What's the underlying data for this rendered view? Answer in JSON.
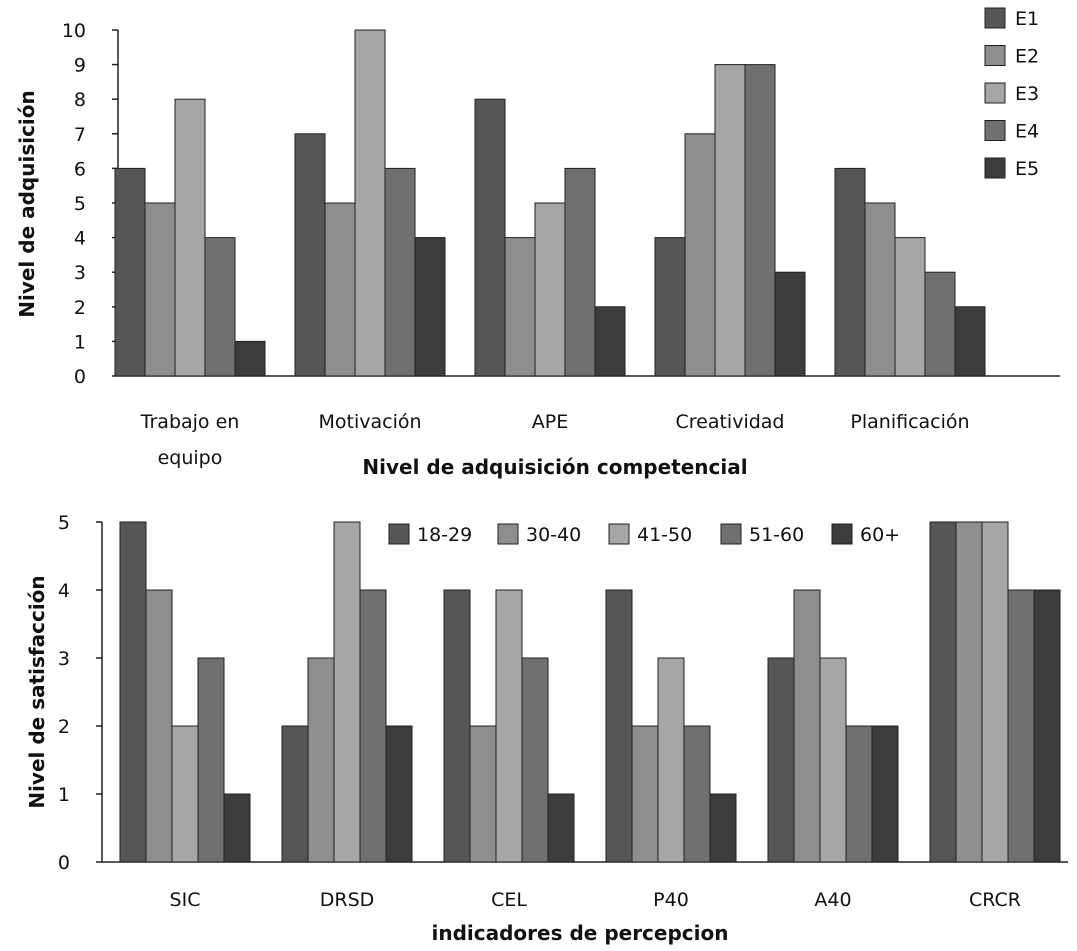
{
  "chart_data": [
    {
      "type": "bar",
      "title": "",
      "xlabel": "Nivel de adquisición  competencial",
      "ylabel": "Nivel de adquisición",
      "ylim": [
        0,
        10
      ],
      "yticks": [
        0,
        1,
        2,
        3,
        4,
        5,
        6,
        7,
        8,
        9,
        10
      ],
      "grid": false,
      "legend_position": "top-right",
      "categories": [
        [
          "Trabajo en",
          "equipo"
        ],
        [
          "Motivación"
        ],
        [
          "APE"
        ],
        [
          "Creatividad"
        ],
        [
          "Planificación"
        ]
      ],
      "series": [
        {
          "name": "E1",
          "color": "#565656",
          "values": [
            6,
            7,
            8,
            4,
            6
          ]
        },
        {
          "name": "E2",
          "color": "#8e8e8e",
          "values": [
            5,
            5,
            4,
            7,
            5
          ]
        },
        {
          "name": "E3",
          "color": "#a6a6a6",
          "values": [
            8,
            10,
            5,
            9,
            4
          ]
        },
        {
          "name": "E4",
          "color": "#707070",
          "values": [
            4,
            6,
            6,
            9,
            3
          ]
        },
        {
          "name": "E5",
          "color": "#3c3c3c",
          "values": [
            1,
            4,
            2,
            3,
            2
          ]
        }
      ]
    },
    {
      "type": "bar",
      "title": "",
      "xlabel": "indicadores de percepcion",
      "ylabel": "Nivel de satisfacción",
      "ylim": [
        0,
        5
      ],
      "yticks": [
        0,
        1,
        2,
        3,
        4,
        5
      ],
      "grid": false,
      "legend_position": "top-center",
      "categories": [
        [
          "SIC"
        ],
        [
          "DRSD"
        ],
        [
          "CEL"
        ],
        [
          "P40"
        ],
        [
          "A40"
        ],
        [
          "CRCR"
        ]
      ],
      "series": [
        {
          "name": "18-29",
          "color": "#565656",
          "values": [
            5,
            2,
            4,
            4,
            3,
            5
          ]
        },
        {
          "name": "30-40",
          "color": "#8e8e8e",
          "values": [
            4,
            3,
            2,
            2,
            4,
            5
          ]
        },
        {
          "name": "41-50",
          "color": "#a6a6a6",
          "values": [
            2,
            5,
            4,
            3,
            3,
            5
          ]
        },
        {
          "name": "51-60",
          "color": "#707070",
          "values": [
            3,
            4,
            3,
            2,
            2,
            4
          ]
        },
        {
          "name": "60+",
          "color": "#3c3c3c",
          "values": [
            1,
            2,
            1,
            1,
            2,
            4
          ]
        }
      ]
    }
  ]
}
